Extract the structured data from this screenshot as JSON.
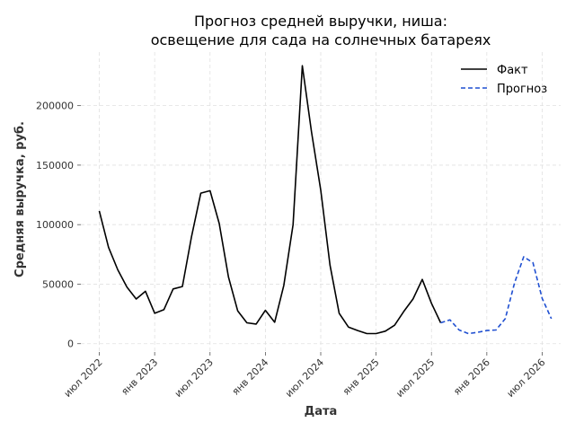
{
  "chart_data": {
    "type": "line",
    "title_lines": [
      "Прогноз средней выручки, ниша:",
      "освещение для сада на солнечных батареях"
    ],
    "xlabel": "Дата",
    "ylabel": "Средняя выручка, руб.",
    "x_ticks": [
      {
        "label": "июл 2022",
        "date": "2022-07-01"
      },
      {
        "label": "янв 2023",
        "date": "2023-01-01"
      },
      {
        "label": "июл 2023",
        "date": "2023-07-01"
      },
      {
        "label": "янв 2024",
        "date": "2024-01-01"
      },
      {
        "label": "июл 2024",
        "date": "2024-07-01"
      },
      {
        "label": "янв 2025",
        "date": "2025-01-01"
      },
      {
        "label": "июл 2025",
        "date": "2025-07-01"
      },
      {
        "label": "янв 2026",
        "date": "2026-01-01"
      },
      {
        "label": "июл 2026",
        "date": "2026-07-01"
      }
    ],
    "y_ticks": [
      0,
      50000,
      100000,
      150000,
      200000
    ],
    "xlim": [
      "2022-05-01",
      "2026-09-01"
    ],
    "ylim": [
      -7000,
      245000
    ],
    "grid": true,
    "legend_position": "top-right",
    "series": [
      {
        "name": "Факт",
        "color": "#000000",
        "style": "solid",
        "points": [
          [
            "2022-07-01",
            111500
          ],
          [
            "2022-08-01",
            81000
          ],
          [
            "2022-09-01",
            62000
          ],
          [
            "2022-10-01",
            47500
          ],
          [
            "2022-11-01",
            37500
          ],
          [
            "2022-12-01",
            44000
          ],
          [
            "2023-01-01",
            25500
          ],
          [
            "2023-02-01",
            28500
          ],
          [
            "2023-03-01",
            46000
          ],
          [
            "2023-04-01",
            48000
          ],
          [
            "2023-05-01",
            90000
          ],
          [
            "2023-06-01",
            126500
          ],
          [
            "2023-07-01",
            128500
          ],
          [
            "2023-08-01",
            101000
          ],
          [
            "2023-09-01",
            56000
          ],
          [
            "2023-10-01",
            27500
          ],
          [
            "2023-11-01",
            17500
          ],
          [
            "2023-12-01",
            16500
          ],
          [
            "2024-01-01",
            28000
          ],
          [
            "2024-02-01",
            18000
          ],
          [
            "2024-03-01",
            49000
          ],
          [
            "2024-04-01",
            100000
          ],
          [
            "2024-05-01",
            233500
          ],
          [
            "2024-06-01",
            178000
          ],
          [
            "2024-07-01",
            129000
          ],
          [
            "2024-08-01",
            66000
          ],
          [
            "2024-09-01",
            25500
          ],
          [
            "2024-10-01",
            14000
          ],
          [
            "2024-11-01",
            11000
          ],
          [
            "2024-12-01",
            8500
          ],
          [
            "2025-01-01",
            8500
          ],
          [
            "2025-02-01",
            10500
          ],
          [
            "2025-03-01",
            15500
          ],
          [
            "2025-04-01",
            27000
          ],
          [
            "2025-05-01",
            37500
          ],
          [
            "2025-06-01",
            54000
          ],
          [
            "2025-07-01",
            34000
          ],
          [
            "2025-08-01",
            17500
          ]
        ]
      },
      {
        "name": "Прогноз",
        "color": "#1f4fd1",
        "style": "dashed",
        "points": [
          [
            "2025-08-01",
            17500
          ],
          [
            "2025-09-01",
            20000
          ],
          [
            "2025-10-01",
            11500
          ],
          [
            "2025-11-01",
            8500
          ],
          [
            "2025-12-01",
            9500
          ],
          [
            "2026-01-01",
            11000
          ],
          [
            "2026-02-01",
            11500
          ],
          [
            "2026-03-01",
            21000
          ],
          [
            "2026-04-01",
            51000
          ],
          [
            "2026-05-01",
            73000
          ],
          [
            "2026-06-01",
            68000
          ],
          [
            "2026-07-01",
            38000
          ],
          [
            "2026-08-01",
            21000
          ]
        ]
      }
    ]
  }
}
